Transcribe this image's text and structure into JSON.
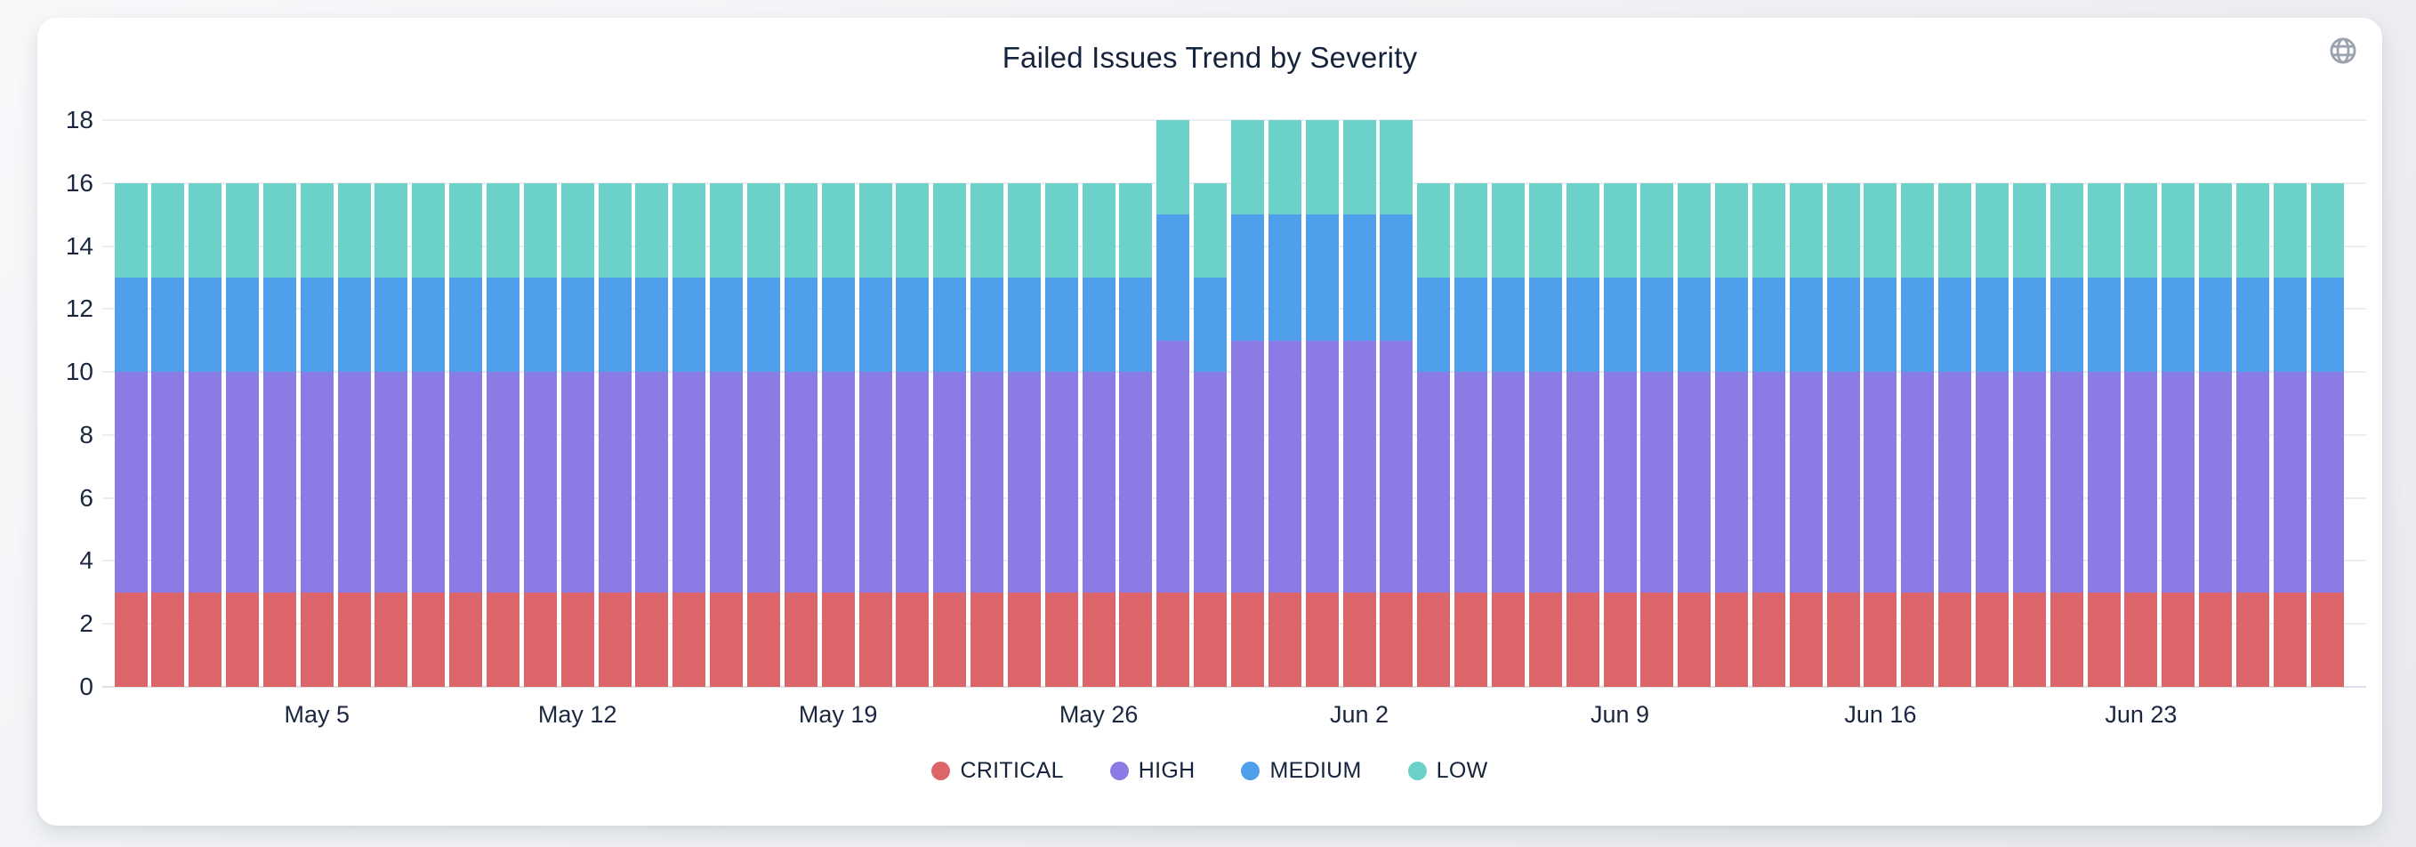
{
  "card": {
    "title": "Failed Issues Trend by Severity"
  },
  "icons": {
    "globe": "globe-icon"
  },
  "colors": {
    "critical": "#dc656a",
    "high": "#8a7ce4",
    "medium": "#4f9fed",
    "low": "#6cd1c9",
    "text": "#16233d",
    "gridline": "#ebedf1",
    "globe": "#9aa3af",
    "card_bg": "#ffffff",
    "page_bg": "#eef0f3"
  },
  "chart_data": {
    "type": "bar",
    "stacked": true,
    "title": "Failed Issues Trend by Severity",
    "xlabel": "",
    "ylabel": "",
    "ylim": [
      0,
      18
    ],
    "yticks": [
      0,
      2,
      4,
      6,
      8,
      10,
      12,
      14,
      16,
      18
    ],
    "grid": true,
    "legend_position": "bottom",
    "categories": [
      "Apr 30",
      "May 1",
      "May 2",
      "May 3",
      "May 4",
      "May 5",
      "May 6",
      "May 7",
      "May 8",
      "May 9",
      "May 10",
      "May 11",
      "May 12",
      "May 13",
      "May 14",
      "May 15",
      "May 16",
      "May 17",
      "May 18",
      "May 19",
      "May 20",
      "May 21",
      "May 22",
      "May 23",
      "May 24",
      "May 25",
      "May 26",
      "May 27",
      "May 28",
      "May 29",
      "May 30",
      "May 31",
      "Jun 1",
      "Jun 2",
      "Jun 3",
      "Jun 4",
      "Jun 5",
      "Jun 6",
      "Jun 7",
      "Jun 8",
      "Jun 9",
      "Jun 10",
      "Jun 11",
      "Jun 12",
      "Jun 13",
      "Jun 14",
      "Jun 15",
      "Jun 16",
      "Jun 17",
      "Jun 18",
      "Jun 19",
      "Jun 20",
      "Jun 21",
      "Jun 22",
      "Jun 23",
      "Jun 24",
      "Jun 25",
      "Jun 26",
      "Jun 27",
      "Jun 28"
    ],
    "x_ticks": [
      {
        "index": 5,
        "label": "May 5"
      },
      {
        "index": 12,
        "label": "May 12"
      },
      {
        "index": 19,
        "label": "May 19"
      },
      {
        "index": 26,
        "label": "May 26"
      },
      {
        "index": 33,
        "label": "Jun 2"
      },
      {
        "index": 40,
        "label": "Jun 9"
      },
      {
        "index": 47,
        "label": "Jun 16"
      },
      {
        "index": 54,
        "label": "Jun 23"
      }
    ],
    "series": [
      {
        "name": "CRITICAL",
        "color": "#dc656a",
        "values": [
          3,
          3,
          3,
          3,
          3,
          3,
          3,
          3,
          3,
          3,
          3,
          3,
          3,
          3,
          3,
          3,
          3,
          3,
          3,
          3,
          3,
          3,
          3,
          3,
          3,
          3,
          3,
          3,
          3,
          3,
          3,
          3,
          3,
          3,
          3,
          3,
          3,
          3,
          3,
          3,
          3,
          3,
          3,
          3,
          3,
          3,
          3,
          3,
          3,
          3,
          3,
          3,
          3,
          3,
          3,
          3,
          3,
          3,
          3,
          3
        ]
      },
      {
        "name": "HIGH",
        "color": "#8a7ce4",
        "values": [
          7,
          7,
          7,
          7,
          7,
          7,
          7,
          7,
          7,
          7,
          7,
          7,
          7,
          7,
          7,
          7,
          7,
          7,
          7,
          7,
          7,
          7,
          7,
          7,
          7,
          7,
          7,
          7,
          8,
          7,
          8,
          8,
          8,
          8,
          8,
          7,
          7,
          7,
          7,
          7,
          7,
          7,
          7,
          7,
          7,
          7,
          7,
          7,
          7,
          7,
          7,
          7,
          7,
          7,
          7,
          7,
          7,
          7,
          7,
          7
        ]
      },
      {
        "name": "MEDIUM",
        "color": "#4f9fed",
        "values": [
          3,
          3,
          3,
          3,
          3,
          3,
          3,
          3,
          3,
          3,
          3,
          3,
          3,
          3,
          3,
          3,
          3,
          3,
          3,
          3,
          3,
          3,
          3,
          3,
          3,
          3,
          3,
          3,
          4,
          3,
          4,
          4,
          4,
          4,
          4,
          3,
          3,
          3,
          3,
          3,
          3,
          3,
          3,
          3,
          3,
          3,
          3,
          3,
          3,
          3,
          3,
          3,
          3,
          3,
          3,
          3,
          3,
          3,
          3,
          3
        ]
      },
      {
        "name": "LOW",
        "color": "#6cd1c9",
        "values": [
          3,
          3,
          3,
          3,
          3,
          3,
          3,
          3,
          3,
          3,
          3,
          3,
          3,
          3,
          3,
          3,
          3,
          3,
          3,
          3,
          3,
          3,
          3,
          3,
          3,
          3,
          3,
          3,
          3,
          3,
          3,
          3,
          3,
          3,
          3,
          3,
          3,
          3,
          3,
          3,
          3,
          3,
          3,
          3,
          3,
          3,
          3,
          3,
          3,
          3,
          3,
          3,
          3,
          3,
          3,
          3,
          3,
          3,
          3,
          3
        ]
      }
    ]
  }
}
